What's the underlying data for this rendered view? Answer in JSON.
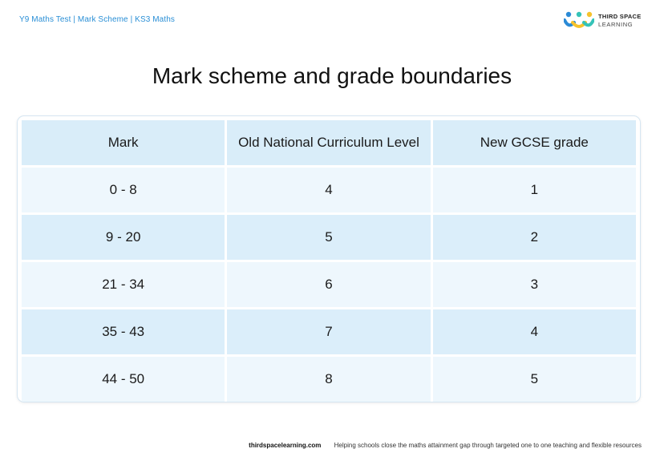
{
  "header": {
    "breadcrumb": "Y9 Maths Test | Mark Scheme | KS3 Maths"
  },
  "logo": {
    "line1": "THIRD SPACE",
    "line2": "LEARNING",
    "colors": {
      "blue": "#2b8ad6",
      "yellow": "#f6c22c",
      "teal": "#35c3b8"
    }
  },
  "title": "Mark scheme and grade boundaries",
  "table": {
    "headers": [
      "Mark",
      "Old National Curriculum Level",
      "New GCSE grade"
    ],
    "rows": [
      [
        "0 - 8",
        "4",
        "1"
      ],
      [
        "9 - 20",
        "5",
        "2"
      ],
      [
        "21 - 34",
        "6",
        "3"
      ],
      [
        "35 - 43",
        "7",
        "4"
      ],
      [
        "44 - 50",
        "8",
        "5"
      ]
    ]
  },
  "footer": {
    "site": "thirdspacelearning.com",
    "tagline": "Helping schools close the maths attainment gap through targeted one to one teaching and flexible resources"
  }
}
